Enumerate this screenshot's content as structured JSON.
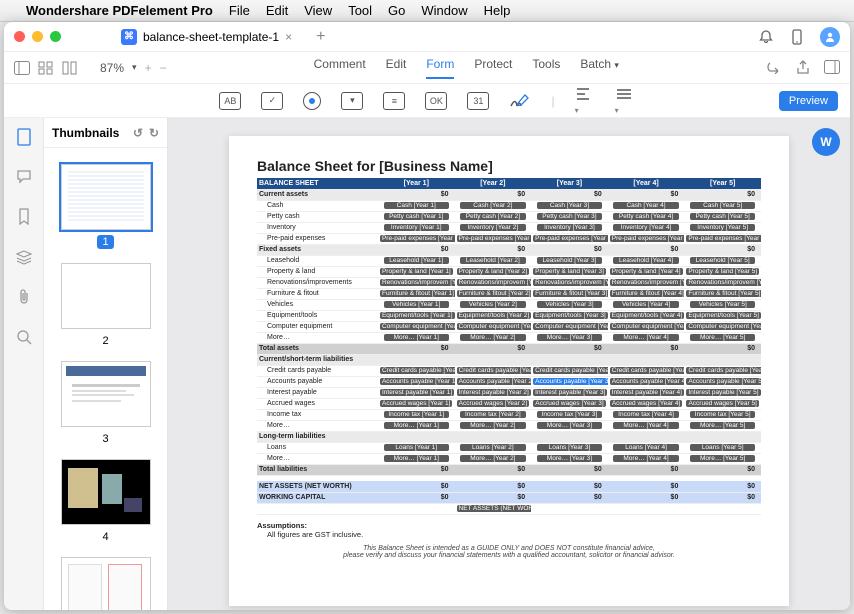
{
  "menubar": {
    "app": "Wondershare PDFelement Pro",
    "items": [
      "File",
      "Edit",
      "View",
      "Tool",
      "Go",
      "Window",
      "Help"
    ]
  },
  "window": {
    "tab_title": "balance-sheet-template-1",
    "zoom": "87%"
  },
  "maintabs": {
    "comment": "Comment",
    "edit": "Edit",
    "form": "Form",
    "protect": "Protect",
    "tools": "Tools",
    "batch": "Batch"
  },
  "preview_label": "Preview",
  "thumbnails": {
    "title": "Thumbnails",
    "pages": [
      "1",
      "2",
      "3",
      "4"
    ]
  },
  "colors": {
    "accent": "#2b7de9",
    "header_bg": "#1f4e8c",
    "section_bg": "#d9e1f2",
    "field_bg": "#5a5a5a"
  },
  "page": {
    "title": "Balance Sheet for [Business Name]",
    "years": [
      "[Year 1]",
      "[Year 2]",
      "[Year 3]",
      "[Year 4]",
      "[Year 5]"
    ],
    "balance_sheet_label": "BALANCE SHEET",
    "sections": [
      {
        "type": "sub",
        "label": "Current assets",
        "zeros": true
      },
      {
        "type": "row",
        "label": "Cash",
        "field": "Cash"
      },
      {
        "type": "row",
        "label": "Petty cash",
        "field": "Petty cash"
      },
      {
        "type": "row",
        "label": "Inventory",
        "field": "Inventory"
      },
      {
        "type": "row",
        "label": "Pre-paid expenses",
        "field": "Pre-paid expenses"
      },
      {
        "type": "sub",
        "label": "Fixed assets",
        "zeros": true
      },
      {
        "type": "row",
        "label": "Leasehold",
        "field": "Leasehold"
      },
      {
        "type": "row",
        "label": "Property & land",
        "field": "Property & land"
      },
      {
        "type": "row",
        "label": "Renovations/improvements",
        "field": "Renovations/improvem"
      },
      {
        "type": "row",
        "label": "Furniture & fitout",
        "field": "Furniture & fitout"
      },
      {
        "type": "row",
        "label": "Vehicles",
        "field": "Vehicles"
      },
      {
        "type": "row",
        "label": "Equipment/tools",
        "field": "Equipment/tools"
      },
      {
        "type": "row",
        "label": "Computer equipment",
        "field": "Computer equipment"
      },
      {
        "type": "row",
        "label": "More…",
        "field": "More…"
      },
      {
        "type": "tot",
        "label": "Total assets",
        "zeros": true
      },
      {
        "type": "sub",
        "label": "Current/short-term liabilities"
      },
      {
        "type": "row",
        "label": "Credit cards payable",
        "field": "Credit cards payable"
      },
      {
        "type": "row",
        "label": "Accounts payable",
        "field": "Accounts payable",
        "highlight": 2
      },
      {
        "type": "row",
        "label": "Interest payable",
        "field": "Interest payable"
      },
      {
        "type": "row",
        "label": "Accrued wages",
        "field": "Accrued wages"
      },
      {
        "type": "row",
        "label": "Income tax",
        "field": "Income tax"
      },
      {
        "type": "row",
        "label": "More…",
        "field": "More…"
      },
      {
        "type": "sub",
        "label": "Long-term liabilities"
      },
      {
        "type": "row",
        "label": "Loans",
        "field": "Loans"
      },
      {
        "type": "row",
        "label": "More…",
        "field": "More…"
      },
      {
        "type": "tot",
        "label": "Total liabilities",
        "zeros": true
      },
      {
        "type": "spacer"
      },
      {
        "type": "net",
        "label": "NET ASSETS (NET WORTH)",
        "zeros": true
      },
      {
        "type": "net",
        "label": "WORKING CAPITAL",
        "zeros": true
      },
      {
        "type": "netfield",
        "field": "NET ASSETS (NET WORTH)"
      }
    ],
    "zero": "$0",
    "assumptions_title": "Assumptions:",
    "assumptions_line": "All figures are GST inclusive.",
    "disclaimer1": "This Balance Sheet is intended as a GUIDE ONLY and DOES NOT constitute financial advice,",
    "disclaimer2": "please verify and discuss your financial statements with a qualified accountant, solicitor or financial advisor."
  }
}
